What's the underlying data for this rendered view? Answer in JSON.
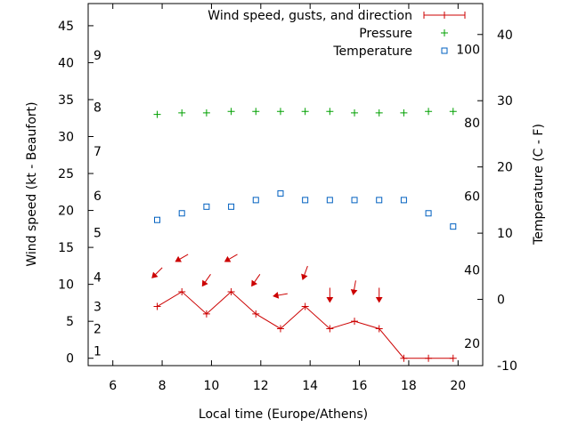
{
  "chart_data": {
    "type": "line",
    "title": "",
    "xlabel": "Local time (Europe/Athens)",
    "ylabel_left": "Wind speed (kt - Beaufort)",
    "ylabel_right": "Temperature (C - F)",
    "xlim": [
      5,
      21
    ],
    "ylim_left": [
      -1,
      48
    ],
    "ylim_right": [
      -10,
      44.67
    ],
    "x_ticks": [
      6,
      8,
      10,
      12,
      14,
      16,
      18,
      20
    ],
    "y_left_ticks": [
      0,
      5,
      10,
      15,
      20,
      25,
      30,
      35,
      40,
      45
    ],
    "y_right_ticks": [
      -10,
      0,
      10,
      20,
      30,
      40
    ],
    "beaufort_labels": [
      {
        "label": "1",
        "kt": 1
      },
      {
        "label": "2",
        "kt": 4
      },
      {
        "label": "3",
        "kt": 7
      },
      {
        "label": "4",
        "kt": 11
      },
      {
        "label": "5",
        "kt": 17
      },
      {
        "label": "6",
        "kt": 22
      },
      {
        "label": "7",
        "kt": 28
      },
      {
        "label": "8",
        "kt": 34
      },
      {
        "label": "9",
        "kt": 41
      }
    ],
    "fahrenheit_labels": [
      {
        "label": "20",
        "celsius": -6.67
      },
      {
        "label": "40",
        "celsius": 4.44
      },
      {
        "label": "60",
        "celsius": 15.56
      },
      {
        "label": "80",
        "celsius": 26.67
      },
      {
        "label": "100",
        "celsius": 37.78
      }
    ],
    "legend": [
      {
        "label": "Wind speed, gusts, and direction",
        "color": "#cc0000"
      },
      {
        "label": "Pressure",
        "color": "#00a000"
      },
      {
        "label": "Temperature",
        "color": "#0060c0"
      }
    ],
    "series": [
      {
        "name": "Wind speed, gusts, and direction",
        "color": "#cc0000",
        "x": [
          7.8,
          8.8,
          9.8,
          10.8,
          11.8,
          12.8,
          13.8,
          14.8,
          15.8,
          16.8,
          17.8,
          18.8,
          19.8
        ],
        "values": [
          7,
          9,
          6,
          9,
          6,
          4,
          7,
          4,
          5,
          4,
          0,
          0,
          0
        ]
      },
      {
        "name": "Pressure",
        "color": "#00a000",
        "x": [
          7.8,
          8.8,
          9.8,
          10.8,
          11.8,
          12.8,
          13.8,
          14.8,
          15.8,
          16.8,
          17.8,
          18.8,
          19.8
        ],
        "values": [
          33.0,
          33.2,
          33.2,
          33.4,
          33.4,
          33.4,
          33.4,
          33.4,
          33.2,
          33.2,
          33.2,
          33.4,
          33.4
        ]
      },
      {
        "name": "Temperature",
        "color": "#0060c0",
        "axis": "right",
        "x": [
          7.8,
          8.8,
          9.8,
          10.8,
          11.8,
          12.8,
          13.8,
          14.8,
          15.8,
          16.8,
          17.8,
          18.8,
          19.8
        ],
        "values": [
          12,
          13,
          14,
          14,
          15,
          16,
          15,
          15,
          15,
          15,
          15,
          13,
          11
        ]
      }
    ],
    "wind_direction_arrows": [
      {
        "x": 7.8,
        "rotation_deg": 225
      },
      {
        "x": 8.8,
        "rotation_deg": 240
      },
      {
        "x": 9.8,
        "rotation_deg": 215
      },
      {
        "x": 10.8,
        "rotation_deg": 240
      },
      {
        "x": 11.8,
        "rotation_deg": 215
      },
      {
        "x": 12.8,
        "rotation_deg": 260
      },
      {
        "x": 13.8,
        "rotation_deg": 200
      },
      {
        "x": 14.8,
        "rotation_deg": 180
      },
      {
        "x": 15.8,
        "rotation_deg": 190
      },
      {
        "x": 16.8,
        "rotation_deg": 180
      }
    ]
  }
}
